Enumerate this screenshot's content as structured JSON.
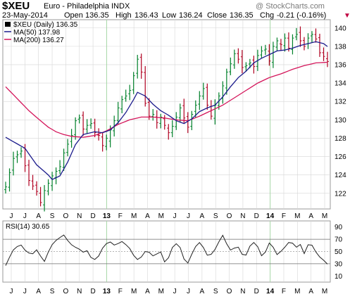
{
  "header": {
    "symbol": "$XEU",
    "name": "Euro - Philadelphia INDX",
    "watermark": "@ StockCharts.com",
    "date": "23-May-2014",
    "open_label": "Open",
    "open": "136.35",
    "high_label": "High",
    "high": "136.43",
    "low_label": "Low",
    "low": "136.24",
    "close_label": "Close",
    "close": "136.35",
    "chg_label": "Chg",
    "chg": "-0.21 (-0.16%)"
  },
  "legend": {
    "price": "$XEU (Daily) 136.35",
    "ma50": "MA(50) 137.98",
    "ma200": "MA(200) 136.27"
  },
  "rsi_label": "RSI(14) 30.65",
  "colors": {
    "up_bar": "#00802a",
    "down_bar": "#b00020",
    "ma50": "#1b1b8c",
    "ma200": "#d4155a",
    "grid": "#d6d6d6",
    "year_line": "#a6d7a6"
  },
  "chart_data": [
    {
      "type": "bar",
      "subtype": "ohlc",
      "title": "$XEU Euro - Philadelphia INDX (Daily)",
      "x_tick_labels": [
        "J",
        "J",
        "A",
        "S",
        "O",
        "N",
        "D",
        "13",
        "F",
        "M",
        "A",
        "M",
        "J",
        "J",
        "A",
        "S",
        "O",
        "N",
        "D",
        "14",
        "F",
        "M",
        "A",
        "M"
      ],
      "y_ticks": [
        122,
        124,
        126,
        128,
        130,
        132,
        134,
        136,
        138,
        140
      ],
      "ylim": [
        120.3,
        140.9
      ],
      "grid": true,
      "series": [
        {
          "name": "$XEU (Daily)",
          "approx_path": [
            [
              0,
              122.7
            ],
            [
              2,
              125.8
            ],
            [
              4,
              126.6
            ],
            [
              6,
              123.4
            ],
            [
              8,
              122.2
            ],
            [
              9,
              121.0
            ],
            [
              10,
              122.3
            ],
            [
              12,
              123.9
            ],
            [
              14,
              124.9
            ],
            [
              15,
              126.4
            ],
            [
              17,
              128.3
            ],
            [
              18,
              129.9
            ],
            [
              19,
              130.2
            ],
            [
              20,
              129.0
            ],
            [
              21,
              129.4
            ],
            [
              22,
              129.6
            ],
            [
              23,
              128.6
            ],
            [
              24,
              128.3
            ],
            [
              25,
              127.2
            ],
            [
              26,
              128.0
            ],
            [
              27,
              128.9
            ],
            [
              28,
              129.9
            ],
            [
              29,
              131.3
            ],
            [
              30,
              132.2
            ],
            [
              31,
              132.6
            ],
            [
              32,
              133.2
            ],
            [
              33,
              134.8
            ],
            [
              34,
              136.6
            ],
            [
              35,
              135.2
            ],
            [
              36,
              131.8
            ],
            [
              37,
              130.4
            ],
            [
              38,
              130.6
            ],
            [
              39,
              129.7
            ],
            [
              40,
              130.3
            ],
            [
              41,
              129.4
            ],
            [
              42,
              128.6
            ],
            [
              43,
              129.3
            ],
            [
              44,
              130.3
            ],
            [
              45,
              131.3
            ],
            [
              46,
              130.2
            ],
            [
              47,
              129.2
            ],
            [
              48,
              130.6
            ],
            [
              49,
              131.6
            ],
            [
              50,
              132.6
            ],
            [
              51,
              133.4
            ],
            [
              52,
              131.6
            ],
            [
              53,
              130.4
            ],
            [
              54,
              131.6
            ],
            [
              55,
              132.6
            ],
            [
              56,
              133.7
            ],
            [
              57,
              135.2
            ],
            [
              58,
              136.1
            ],
            [
              59,
              137.2
            ],
            [
              60,
              136.6
            ],
            [
              61,
              135.7
            ],
            [
              62,
              135.9
            ],
            [
              63,
              136.2
            ],
            [
              64,
              135.8
            ],
            [
              65,
              137.0
            ],
            [
              66,
              137.5
            ],
            [
              67,
              137.7
            ],
            [
              68,
              136.4
            ],
            [
              69,
              138.0
            ],
            [
              70,
              138.6
            ],
            [
              71,
              138.2
            ],
            [
              72,
              138.9
            ],
            [
              73,
              137.8
            ],
            [
              74,
              138.9
            ],
            [
              75,
              139.3
            ],
            [
              76,
              138.6
            ],
            [
              77,
              138.0
            ],
            [
              78,
              138.9
            ],
            [
              79,
              139.3
            ],
            [
              80,
              138.8
            ],
            [
              81,
              137.3
            ],
            [
              82,
              136.9
            ],
            [
              83,
              136.35
            ]
          ]
        },
        {
          "name": "MA(50)",
          "approx_path": [
            [
              0,
              128.1
            ],
            [
              5,
              126.9
            ],
            [
              8,
              125.1
            ],
            [
              11,
              124.0
            ],
            [
              12,
              123.5
            ],
            [
              14,
              123.9
            ],
            [
              16,
              125.4
            ],
            [
              18,
              127.3
            ],
            [
              20,
              128.4
            ],
            [
              23,
              128.7
            ],
            [
              25,
              128.6
            ],
            [
              27,
              128.9
            ],
            [
              29,
              129.7
            ],
            [
              31,
              130.8
            ],
            [
              33,
              132.2
            ],
            [
              34,
              133.0
            ],
            [
              36,
              132.6
            ],
            [
              38,
              131.7
            ],
            [
              40,
              131.0
            ],
            [
              42,
              130.5
            ],
            [
              44,
              129.9
            ],
            [
              46,
              129.6
            ],
            [
              48,
              130.1
            ],
            [
              50,
              130.9
            ],
            [
              52,
              131.3
            ],
            [
              54,
              131.6
            ],
            [
              56,
              132.5
            ],
            [
              58,
              133.6
            ],
            [
              60,
              134.6
            ],
            [
              62,
              135.3
            ],
            [
              64,
              136.2
            ],
            [
              66,
              136.7
            ],
            [
              68,
              137.1
            ],
            [
              70,
              137.5
            ],
            [
              72,
              137.6
            ],
            [
              74,
              137.8
            ],
            [
              76,
              138.1
            ],
            [
              78,
              138.3
            ],
            [
              80,
              138.5
            ],
            [
              82,
              138.3
            ],
            [
              83,
              137.98
            ]
          ]
        },
        {
          "name": "MA(200)",
          "approx_path": [
            [
              0,
              133.6
            ],
            [
              3,
              132.3
            ],
            [
              6,
              131.0
            ],
            [
              9,
              129.9
            ],
            [
              11,
              129.2
            ],
            [
              13,
              128.7
            ],
            [
              15,
              128.4
            ],
            [
              17,
              128.2
            ],
            [
              20,
              128.1
            ],
            [
              23,
              128.3
            ],
            [
              26,
              128.8
            ],
            [
              29,
              129.5
            ],
            [
              32,
              130.0
            ],
            [
              35,
              130.3
            ],
            [
              38,
              130.3
            ],
            [
              41,
              130.2
            ],
            [
              44,
              130.0
            ],
            [
              47,
              129.9
            ],
            [
              50,
              130.4
            ],
            [
              53,
              131.0
            ],
            [
              56,
              131.6
            ],
            [
              59,
              132.4
            ],
            [
              62,
              133.2
            ],
            [
              65,
              134.0
            ],
            [
              68,
              134.6
            ],
            [
              71,
              135.0
            ],
            [
              74,
              135.5
            ],
            [
              77,
              135.9
            ],
            [
              80,
              136.2
            ],
            [
              83,
              136.27
            ]
          ]
        }
      ]
    },
    {
      "type": "line",
      "title": "RSI(14) 30.65",
      "x_tick_labels": [
        "J",
        "J",
        "A",
        "S",
        "O",
        "N",
        "D",
        "13",
        "F",
        "M",
        "A",
        "M",
        "J",
        "J",
        "A",
        "S",
        "O",
        "N",
        "D",
        "14",
        "F",
        "M",
        "A",
        "M"
      ],
      "y_ticks": [
        10,
        30,
        50,
        70,
        90
      ],
      "reference_lines": [
        30,
        50,
        70
      ],
      "ylim": [
        0,
        100
      ],
      "series": [
        {
          "name": "RSI(14)",
          "approx_path": [
            [
              0,
              27
            ],
            [
              1,
              38
            ],
            [
              2,
              50
            ],
            [
              3,
              58
            ],
            [
              4,
              63
            ],
            [
              5,
              55
            ],
            [
              6,
              48
            ],
            [
              7,
              44
            ],
            [
              8,
              50
            ],
            [
              9,
              42
            ],
            [
              10,
              36
            ],
            [
              11,
              52
            ],
            [
              12,
              62
            ],
            [
              13,
              66
            ],
            [
              14,
              70
            ],
            [
              15,
              76
            ],
            [
              16,
              70
            ],
            [
              17,
              64
            ],
            [
              18,
              58
            ],
            [
              19,
              52
            ],
            [
              20,
              46
            ],
            [
              21,
              50
            ],
            [
              22,
              42
            ],
            [
              23,
              40
            ],
            [
              24,
              44
            ],
            [
              25,
              54
            ],
            [
              26,
              60
            ],
            [
              27,
              64
            ],
            [
              28,
              62
            ],
            [
              29,
              66
            ],
            [
              30,
              68
            ],
            [
              31,
              60
            ],
            [
              32,
              52
            ],
            [
              33,
              42
            ],
            [
              34,
              38
            ],
            [
              35,
              44
            ],
            [
              36,
              52
            ],
            [
              37,
              48
            ],
            [
              38,
              40
            ],
            [
              39,
              44
            ],
            [
              40,
              50
            ],
            [
              41,
              36
            ],
            [
              42,
              42
            ],
            [
              43,
              56
            ],
            [
              44,
              60
            ],
            [
              45,
              54
            ],
            [
              46,
              38
            ],
            [
              47,
              34
            ],
            [
              48,
              48
            ],
            [
              49,
              58
            ],
            [
              50,
              62
            ],
            [
              51,
              54
            ],
            [
              52,
              44
            ],
            [
              53,
              48
            ],
            [
              54,
              56
            ],
            [
              55,
              66
            ],
            [
              56,
              74
            ],
            [
              57,
              60
            ],
            [
              58,
              52
            ],
            [
              59,
              58
            ],
            [
              60,
              60
            ],
            [
              61,
              46
            ],
            [
              62,
              42
            ],
            [
              63,
              56
            ],
            [
              64,
              64
            ],
            [
              65,
              60
            ],
            [
              66,
              46
            ],
            [
              67,
              50
            ],
            [
              68,
              62
            ],
            [
              69,
              54
            ],
            [
              70,
              44
            ],
            [
              71,
              52
            ],
            [
              72,
              60
            ],
            [
              73,
              66
            ],
            [
              74,
              62
            ],
            [
              75,
              54
            ],
            [
              76,
              60
            ],
            [
              77,
              48
            ],
            [
              78,
              64
            ],
            [
              79,
              62
            ],
            [
              80,
              48
            ],
            [
              81,
              38
            ],
            [
              82,
              34
            ],
            [
              83,
              30.65
            ]
          ]
        }
      ]
    }
  ]
}
